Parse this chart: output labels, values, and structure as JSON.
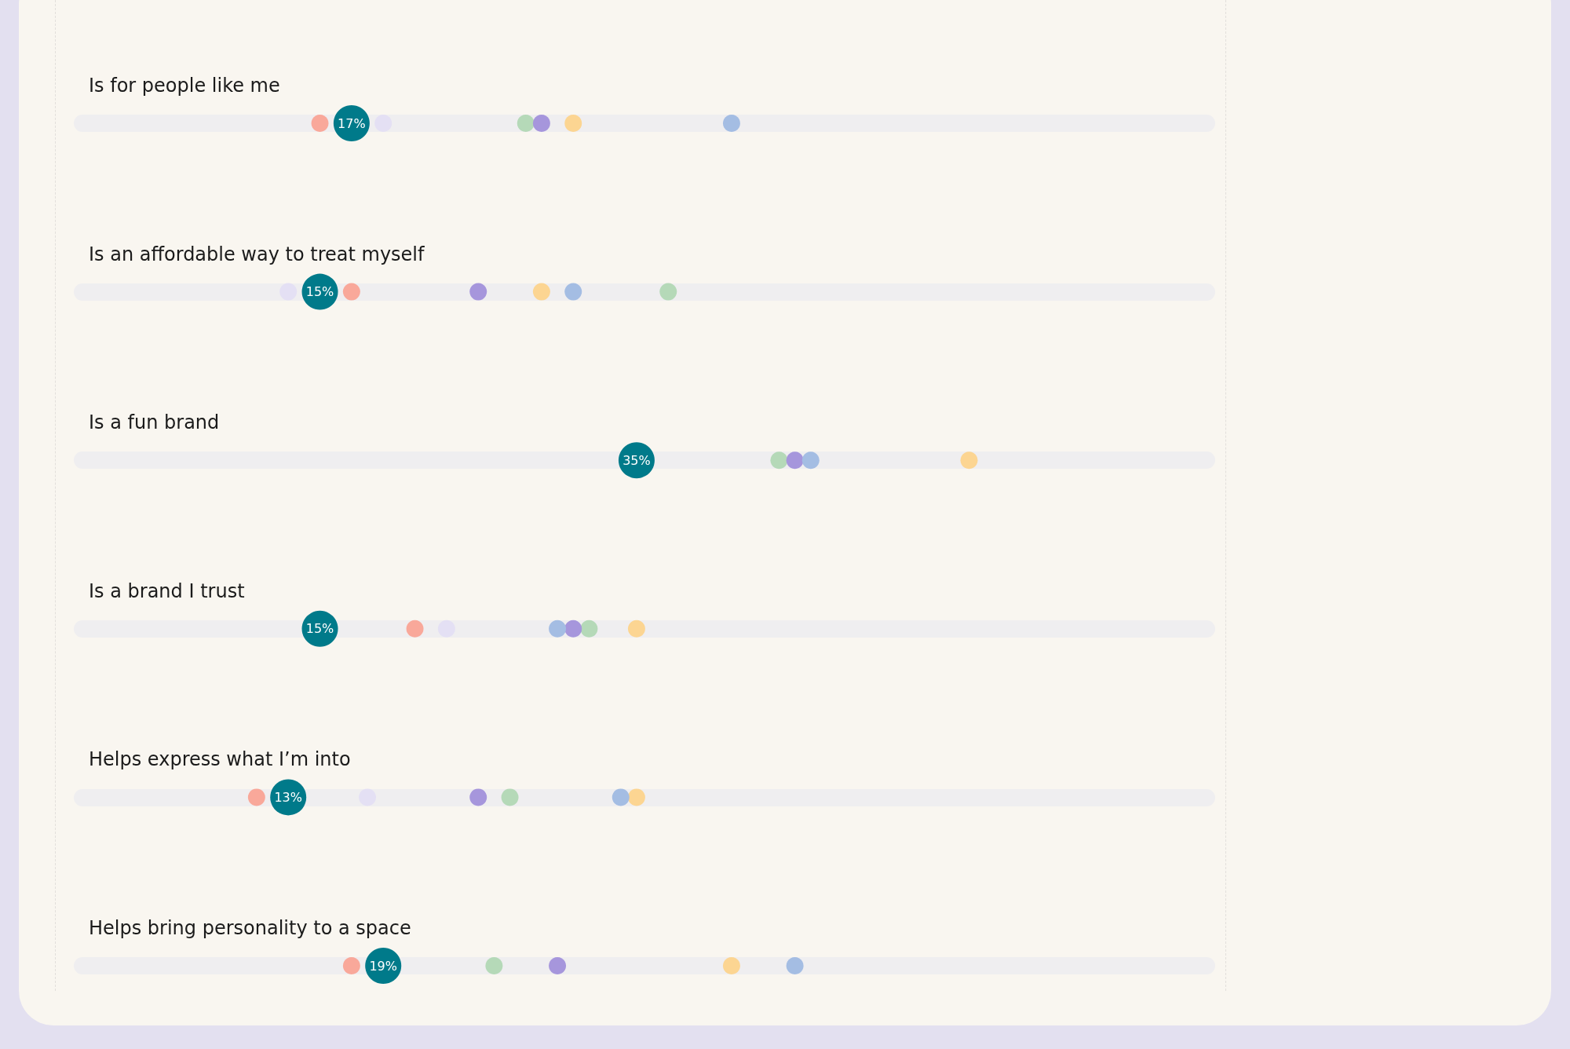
{
  "chart_data": {
    "type": "scatter",
    "categories": [
      "Is for people like me",
      "Is an affordable way to treat myself",
      "Is a fun brand",
      "Is a brand I trust",
      "Helps express what I’m into",
      "Helps bring personality to a space"
    ],
    "orientation": "horizontal",
    "xlim": [
      0,
      71
    ],
    "tick_labels": "y",
    "marker": "circle",
    "series": [
      {
        "color": "#f9a89a",
        "values": [
          15,
          17,
          null,
          21,
          11,
          17
        ]
      },
      {
        "color": "#e4e0f4",
        "values": [
          19,
          13,
          null,
          23,
          18,
          null
        ]
      },
      {
        "color": "#b5d9b8",
        "values": [
          28,
          37,
          44,
          32,
          27,
          26
        ]
      },
      {
        "color": "#a696dc",
        "values": [
          29,
          25,
          45,
          31,
          25,
          30
        ]
      },
      {
        "color": "#fcd592",
        "values": [
          31,
          29,
          56,
          35,
          35,
          41
        ]
      },
      {
        "color": "#a4bde3",
        "values": [
          41,
          31,
          46,
          30,
          34,
          45
        ]
      },
      {
        "color": "#007a8a",
        "values": [
          17,
          15,
          35,
          15,
          13,
          19
        ],
        "value_labels": [
          "17%",
          "15%",
          "35%",
          "15%",
          "13%",
          "19%"
        ]
      }
    ]
  }
}
